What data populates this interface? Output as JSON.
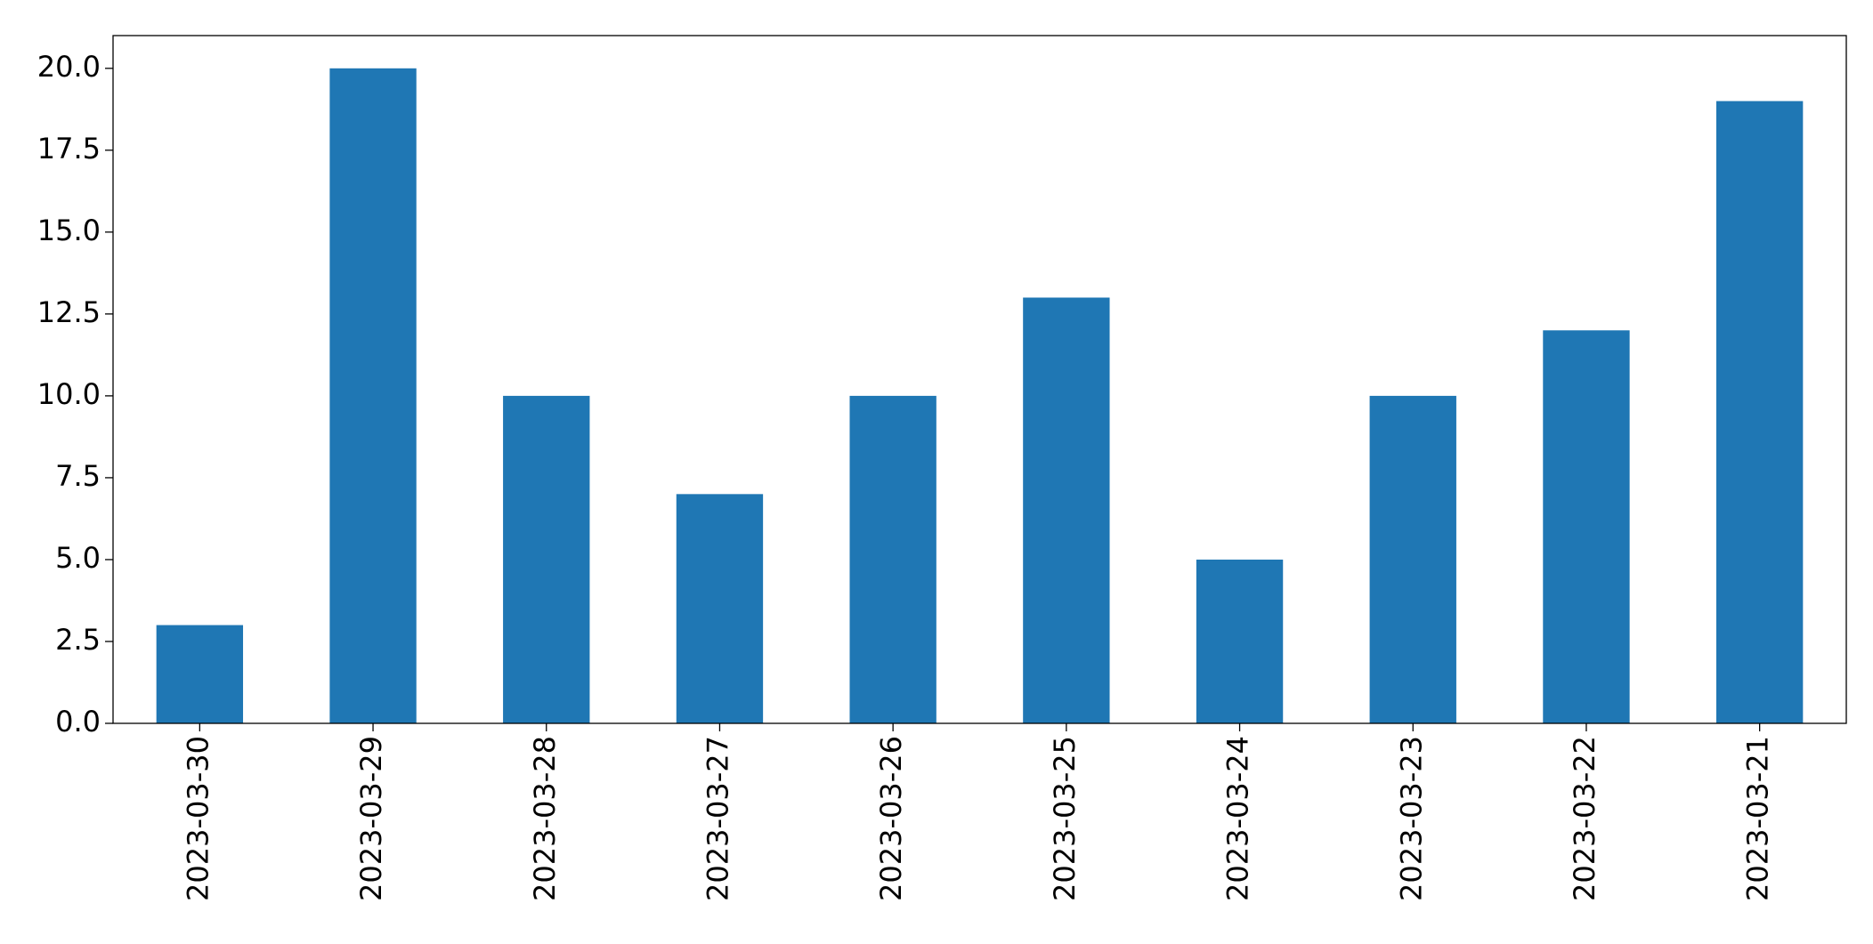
{
  "chart_data": {
    "type": "bar",
    "categories": [
      "2023-03-30",
      "2023-03-29",
      "2023-03-28",
      "2023-03-27",
      "2023-03-26",
      "2023-03-25",
      "2023-03-24",
      "2023-03-23",
      "2023-03-22",
      "2023-03-21"
    ],
    "values": [
      3,
      20,
      10,
      7,
      10,
      13,
      5,
      10,
      12,
      19
    ],
    "color": "#1f77b4",
    "ylim": [
      0,
      21
    ],
    "yticks": [
      {
        "value": 0,
        "label": "0.0"
      },
      2.5,
      {
        "value": 5,
        "label": "5.0"
      },
      7.5,
      {
        "value": 10,
        "label": "10.0"
      },
      12.5,
      {
        "value": 15,
        "label": "15.0"
      },
      17.5,
      {
        "value": 20,
        "label": "20.0"
      }
    ],
    "grid": false
  }
}
